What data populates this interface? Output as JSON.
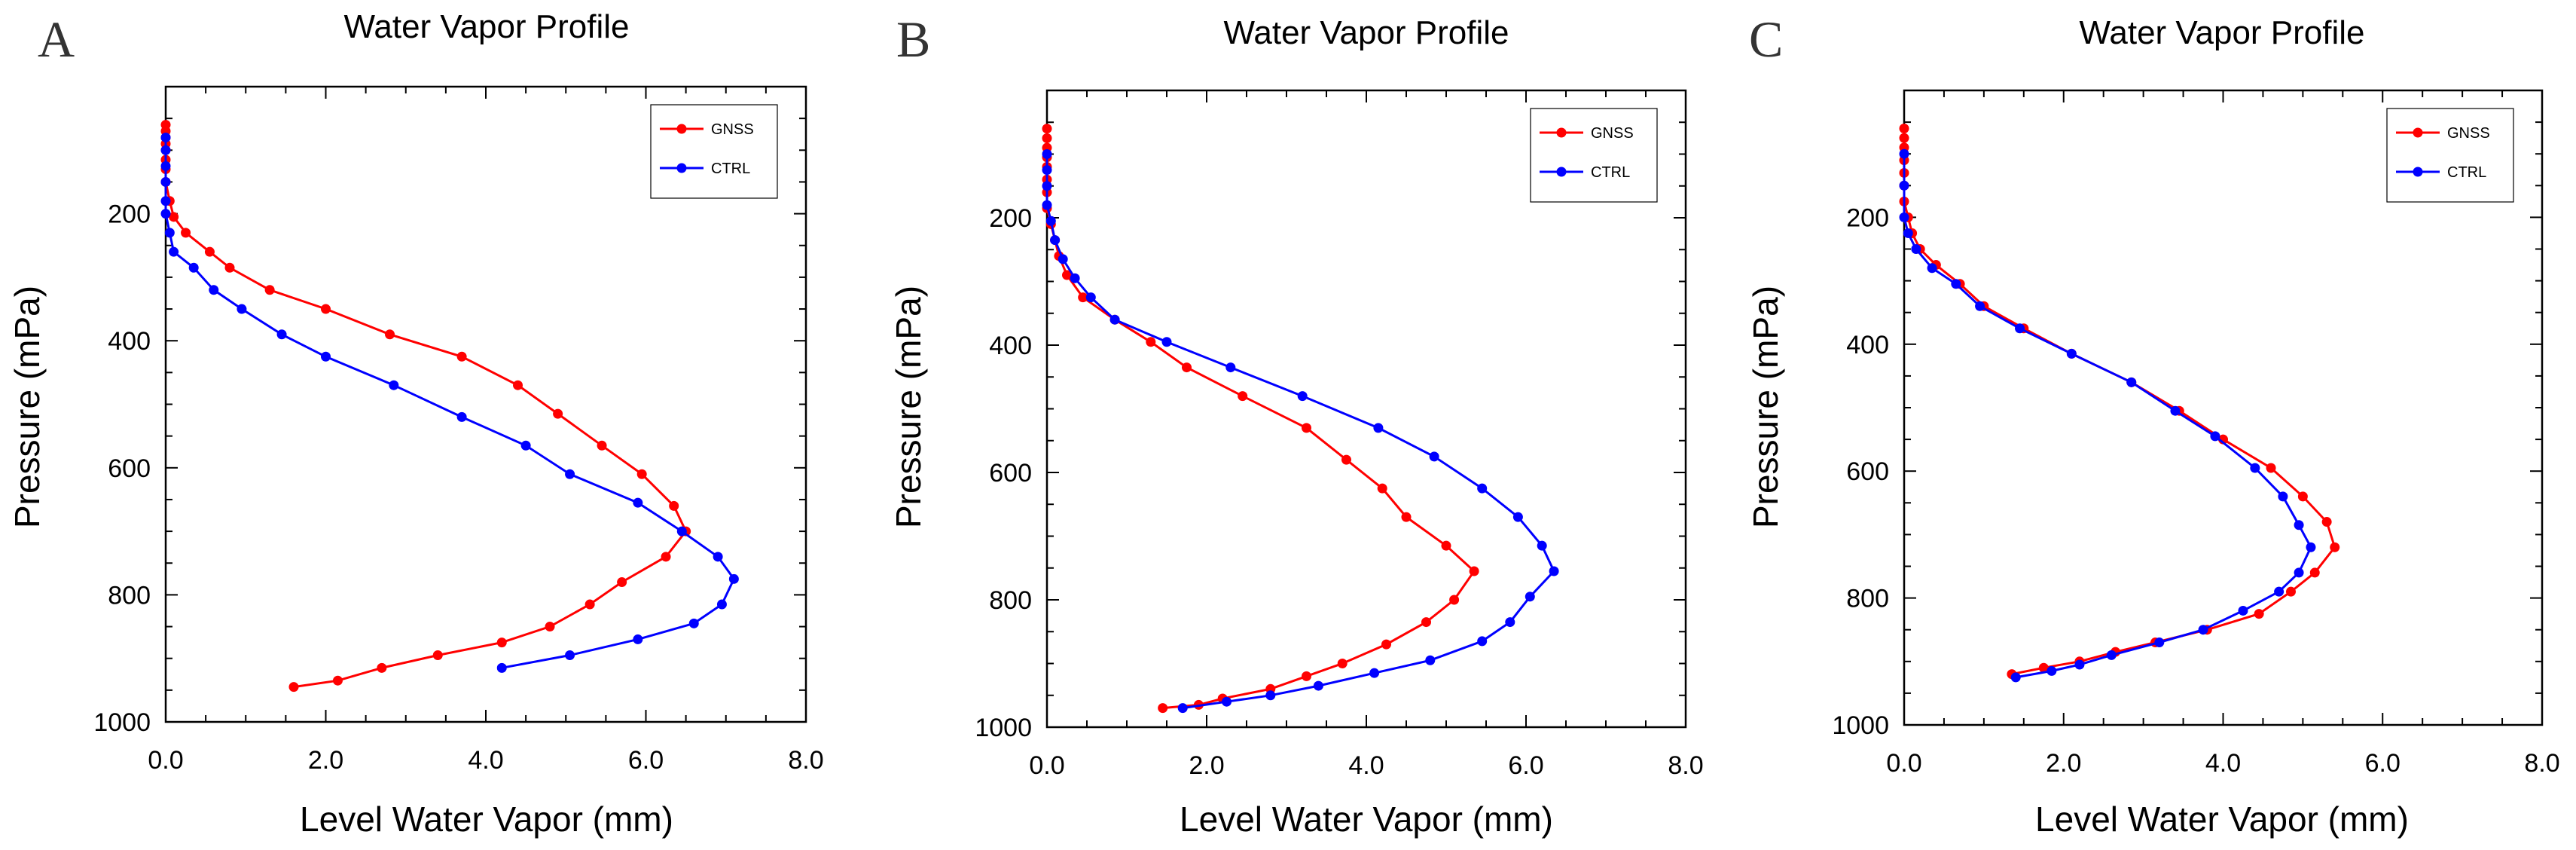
{
  "panel_letters": [
    "A",
    "B",
    "C"
  ],
  "chart_data": [
    {
      "type": "line",
      "panel": "A",
      "title": "Water Vapor Profile",
      "xlabel": "Level Water Vapor (mm)",
      "ylabel": "Pressure (mPa)",
      "xlim": [
        0,
        8
      ],
      "ylim": [
        1000,
        0
      ],
      "xticks": [
        0,
        2,
        4,
        6,
        8
      ],
      "xtick_labels": [
        "0.0",
        "2.0",
        "4.0",
        "6.0",
        "8.0"
      ],
      "yticks": [
        200,
        400,
        600,
        800,
        1000
      ],
      "ytick_labels": [
        "200",
        "400",
        "600",
        "800",
        "1000"
      ],
      "legend_position": "top-right",
      "series": [
        {
          "name": "GNSS",
          "color": "#ff0000",
          "x": [
            0.0,
            0.0,
            0.0,
            0.0,
            0.0,
            0.0,
            0.0,
            0.0,
            0.05,
            0.1,
            0.25,
            0.55,
            0.8,
            1.3,
            2.0,
            2.8,
            3.7,
            4.4,
            4.9,
            5.45,
            5.95,
            6.35,
            6.5,
            6.25,
            5.7,
            5.3,
            4.8,
            4.2,
            3.4,
            2.7,
            2.15,
            1.6
          ],
          "y": [
            60,
            70,
            80,
            90,
            100,
            115,
            130,
            150,
            180,
            205,
            230,
            260,
            285,
            320,
            350,
            390,
            425,
            470,
            515,
            565,
            610,
            660,
            700,
            740,
            780,
            815,
            850,
            875,
            895,
            915,
            935,
            945
          ]
        },
        {
          "name": "CTRL",
          "color": "#0000ff",
          "x": [
            0.0,
            0.0,
            0.0,
            0.0,
            0.0,
            0.0,
            0.05,
            0.1,
            0.35,
            0.6,
            0.95,
            1.45,
            2.0,
            2.85,
            3.7,
            4.5,
            5.05,
            5.9,
            6.45,
            6.9,
            7.1,
            6.95,
            6.6,
            5.9,
            5.05,
            4.2
          ],
          "y": [
            80,
            100,
            125,
            150,
            180,
            200,
            230,
            260,
            285,
            320,
            350,
            390,
            425,
            470,
            520,
            565,
            610,
            655,
            700,
            740,
            775,
            815,
            845,
            870,
            895,
            915
          ]
        }
      ]
    },
    {
      "type": "line",
      "panel": "B",
      "title": "Water Vapor Profile",
      "xlabel": "Level Water Vapor (mm)",
      "ylabel": "Pressure (mPa)",
      "xlim": [
        0,
        8
      ],
      "ylim": [
        1000,
        0
      ],
      "xticks": [
        0,
        2,
        4,
        6,
        8
      ],
      "xtick_labels": [
        "0.0",
        "2.0",
        "4.0",
        "6.0",
        "8.0"
      ],
      "yticks": [
        200,
        400,
        600,
        800,
        1000
      ],
      "ytick_labels": [
        "200",
        "400",
        "600",
        "800",
        "1000"
      ],
      "legend_position": "top-right",
      "series": [
        {
          "name": "GNSS",
          "color": "#ff0000",
          "x": [
            0.0,
            0.0,
            0.0,
            0.0,
            0.0,
            0.0,
            0.0,
            0.0,
            0.05,
            0.1,
            0.15,
            0.25,
            0.45,
            0.85,
            1.3,
            1.75,
            2.45,
            3.25,
            3.75,
            4.2,
            4.5,
            5.0,
            5.35,
            5.1,
            4.75,
            4.25,
            3.7,
            3.25,
            2.8,
            2.2,
            1.9,
            1.45
          ],
          "y": [
            60,
            75,
            90,
            105,
            120,
            140,
            160,
            185,
            210,
            235,
            260,
            290,
            325,
            360,
            395,
            435,
            480,
            530,
            580,
            625,
            670,
            715,
            755,
            800,
            835,
            870,
            900,
            920,
            940,
            955,
            965,
            970
          ]
        },
        {
          "name": "CTRL",
          "color": "#0000ff",
          "x": [
            0.0,
            0.0,
            0.0,
            0.0,
            0.05,
            0.1,
            0.2,
            0.35,
            0.55,
            0.85,
            1.5,
            2.3,
            3.2,
            4.15,
            4.85,
            5.45,
            5.9,
            6.2,
            6.35,
            6.05,
            5.8,
            5.45,
            4.8,
            4.1,
            3.4,
            2.8,
            2.25,
            1.7
          ],
          "y": [
            100,
            125,
            150,
            180,
            205,
            235,
            265,
            295,
            325,
            360,
            395,
            435,
            480,
            530,
            575,
            625,
            670,
            715,
            755,
            795,
            835,
            865,
            895,
            915,
            935,
            950,
            960,
            970
          ]
        }
      ]
    },
    {
      "type": "line",
      "panel": "C",
      "title": "Water Vapor Profile",
      "xlabel": "Level Water Vapor (mm)",
      "ylabel": "Pressure (mPa)",
      "xlim": [
        0,
        8
      ],
      "ylim": [
        1000,
        0
      ],
      "xticks": [
        0,
        2,
        4,
        6,
        8
      ],
      "xtick_labels": [
        "0.0",
        "2.0",
        "4.0",
        "6.0",
        "8.0"
      ],
      "yticks": [
        200,
        400,
        600,
        800,
        1000
      ],
      "ytick_labels": [
        "200",
        "400",
        "600",
        "800",
        "1000"
      ],
      "legend_position": "top-right",
      "series": [
        {
          "name": "GNSS",
          "color": "#ff0000",
          "x": [
            0.0,
            0.0,
            0.0,
            0.0,
            0.0,
            0.0,
            0.0,
            0.05,
            0.1,
            0.2,
            0.4,
            0.7,
            1.0,
            1.5,
            2.1,
            2.85,
            3.45,
            4.0,
            4.6,
            5.0,
            5.3,
            5.4,
            5.15,
            4.85,
            4.45,
            3.8,
            3.15,
            2.65,
            2.2,
            1.75,
            1.35
          ],
          "y": [
            60,
            75,
            90,
            110,
            130,
            150,
            175,
            200,
            225,
            250,
            275,
            305,
            340,
            375,
            415,
            460,
            505,
            550,
            595,
            640,
            680,
            720,
            760,
            790,
            825,
            850,
            870,
            885,
            900,
            910,
            920
          ]
        },
        {
          "name": "CTRL",
          "color": "#0000ff",
          "x": [
            0.0,
            0.0,
            0.0,
            0.05,
            0.15,
            0.35,
            0.65,
            0.95,
            1.45,
            2.1,
            2.85,
            3.4,
            3.9,
            4.4,
            4.75,
            4.95,
            5.1,
            4.95,
            4.7,
            4.25,
            3.75,
            3.2,
            2.6,
            2.2,
            1.85,
            1.4
          ],
          "y": [
            100,
            150,
            200,
            225,
            250,
            280,
            305,
            340,
            375,
            415,
            460,
            505,
            545,
            595,
            640,
            685,
            720,
            760,
            790,
            820,
            850,
            870,
            890,
            905,
            915,
            925
          ]
        }
      ]
    }
  ]
}
